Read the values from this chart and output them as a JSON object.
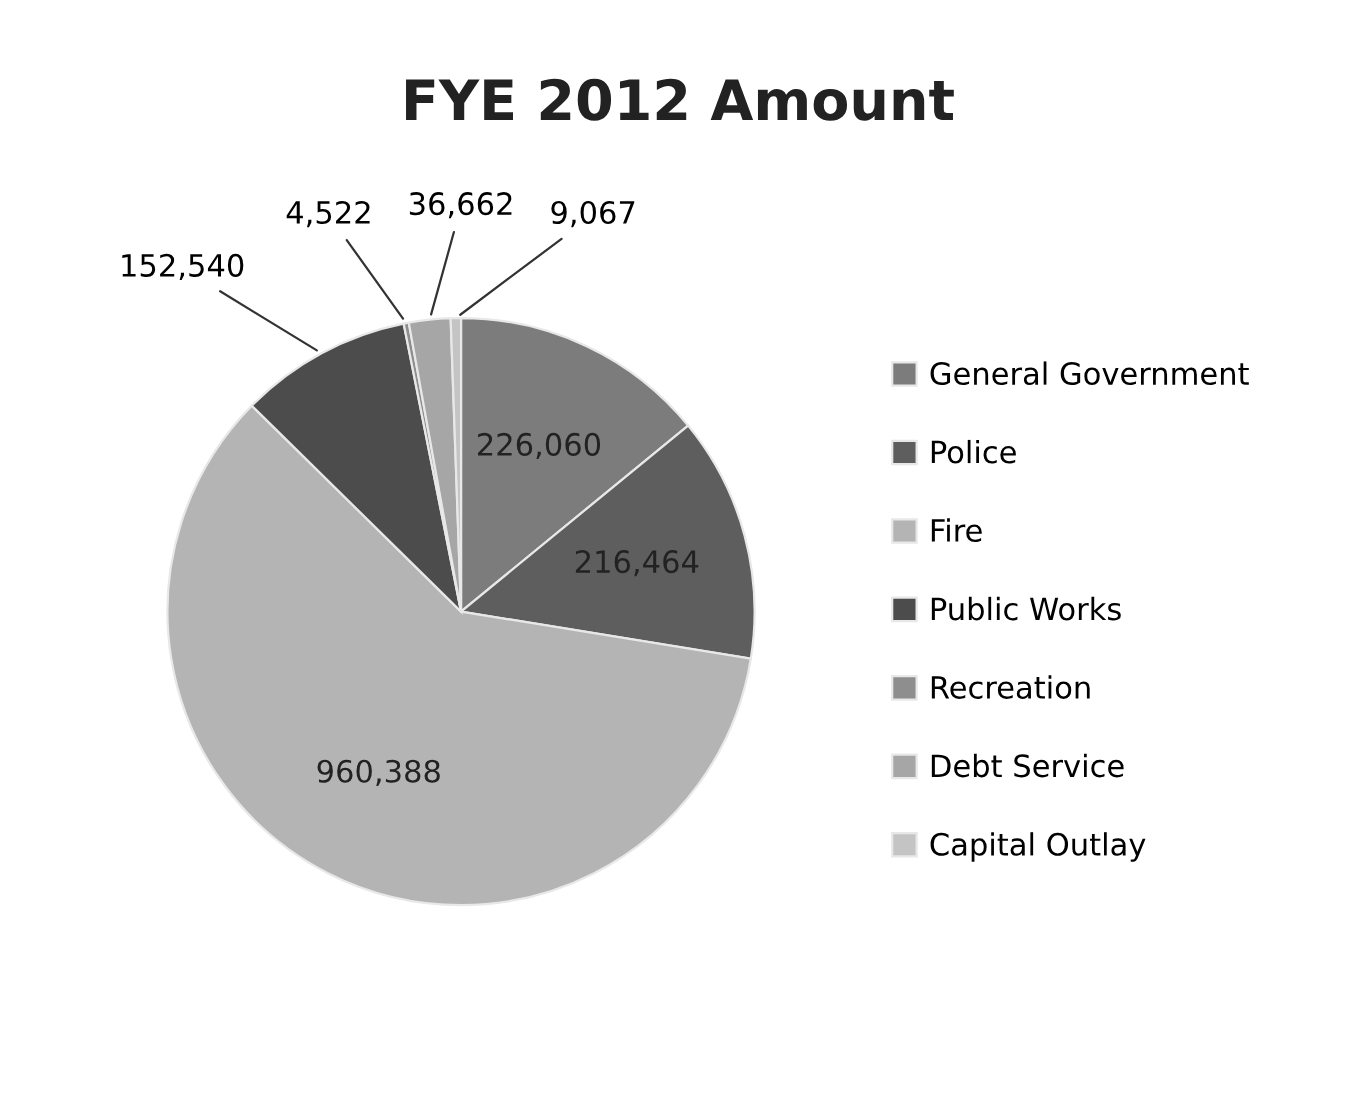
{
  "chart_data": {
    "type": "pie",
    "title": "FYE 2012 Amount",
    "categories": [
      "General Government",
      "Police",
      "Fire",
      "Public Works",
      "Recreation",
      "Debt Service",
      "Capital Outlay"
    ],
    "values": [
      226060,
      216464,
      960388,
      152540,
      4522,
      36662,
      9067
    ],
    "colors": [
      "#7c7c7c",
      "#5e5e5e",
      "#b4b4b4",
      "#4c4c4c",
      "#8e8e8e",
      "#a6a6a6",
      "#c4c4c4"
    ],
    "value_labels": [
      "226,060",
      "216,464",
      "960,388",
      "152,540",
      "4,522",
      "36,662",
      "9,067"
    ],
    "legend": "right"
  }
}
